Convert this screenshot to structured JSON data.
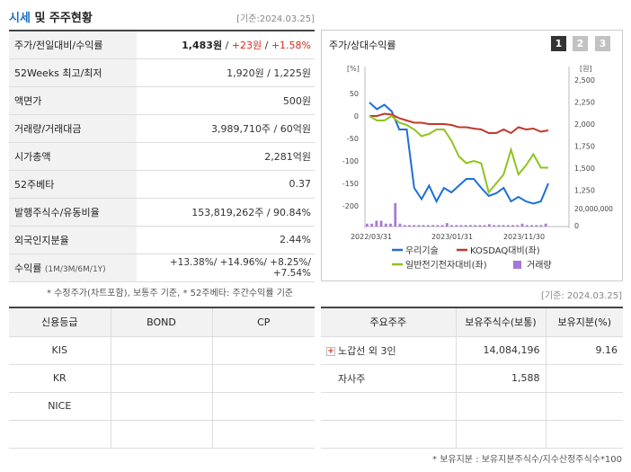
{
  "header": {
    "title_accent": "시세",
    "title_rest": " 및 주주현황",
    "date": "[기준:2024.03.25]"
  },
  "info_rows": [
    {
      "label": "주가/전일대비/수익률",
      "price": "1,483원",
      "sep": " / ",
      "change": "+23원",
      "sep2": " / ",
      "rate": "+1.58%"
    },
    {
      "label": "52Weeks 최고/최저",
      "value": "1,920원 / 1,225원"
    },
    {
      "label": "액면가",
      "value": "500원"
    },
    {
      "label": "거래량/거래대금",
      "value": "3,989,710주 / 60억원"
    },
    {
      "label": "시가총액",
      "value": "2,281억원"
    },
    {
      "label": "52주베타",
      "value": "0.37"
    },
    {
      "label": "발행주식수/유동비율",
      "value": "153,819,262주 / 90.84%"
    },
    {
      "label": "외국인지분율",
      "value": "2.44%"
    },
    {
      "label": "수익률",
      "label_small": "(1M/3M/6M/1Y)",
      "value": "+13.38%/ +14.96%/ +8.25%/ +7.54%"
    }
  ],
  "note": "* 수정주가(차트포함), 보통주 기준, * 52주베타: 주간수익률 기준",
  "chart": {
    "title": "주가/상대수익률",
    "pages": [
      "1",
      "2",
      "3"
    ],
    "left_unit": "[%]",
    "right_unit": "[원]",
    "legend": [
      {
        "label": "우리기술",
        "color": "#1d6fd8"
      },
      {
        "label": "KOSDAQ대비(좌)",
        "color": "#c0392b"
      },
      {
        "label": "일반전기전자대비(좌)",
        "color": "#8fc31f"
      },
      {
        "label": "거래량",
        "color": "#a678d6"
      }
    ]
  },
  "chart_data": {
    "type": "line",
    "x_labels": [
      "2022/03/31",
      "2023/01/31",
      "2023/11/30"
    ],
    "left_axis": {
      "ticks": [
        "50",
        "0",
        "-50",
        "-100",
        "-150",
        "-200"
      ],
      "range": [
        -210,
        60
      ]
    },
    "right_axis": {
      "ticks": [
        "2,500",
        "2,250",
        "2,000",
        "1,750",
        "1,500",
        "1,250"
      ],
      "volume_ticks": [
        "20,000,000",
        "0"
      ]
    },
    "series": [
      {
        "name": "우리기술",
        "color": "#1d6fd8",
        "values": [
          30,
          15,
          25,
          10,
          -30,
          -30,
          -160,
          -185,
          -155,
          -190,
          -160,
          -170,
          -155,
          -140,
          -140,
          -160,
          -178,
          -172,
          -160,
          -190,
          -180,
          -190,
          -195,
          -190,
          -150
        ]
      },
      {
        "name": "KOSDAQ대비(좌)",
        "color": "#c0392b",
        "values": [
          0,
          0,
          5,
          3,
          -5,
          -10,
          -15,
          -15,
          -18,
          -18,
          -18,
          -20,
          -25,
          -25,
          -28,
          -30,
          -38,
          -38,
          -30,
          -38,
          -25,
          -30,
          -28,
          -35,
          -32
        ]
      },
      {
        "name": "일반전기전자대비(좌)",
        "color": "#8fc31f",
        "values": [
          0,
          -10,
          -10,
          0,
          -15,
          -20,
          -30,
          -45,
          -40,
          -30,
          -30,
          -55,
          -90,
          -105,
          -100,
          -105,
          -170,
          -150,
          -130,
          -75,
          -130,
          -110,
          -85,
          -115,
          -115
        ]
      }
    ],
    "volume": [
      1,
      1,
      2,
      2,
      1,
      1,
      8,
      1,
      0.5,
      0.5,
      0.5,
      0.5,
      0.5,
      0.5,
      0.5,
      0.5,
      0.5,
      1.2,
      0.5,
      0.5,
      0.5,
      0.5,
      0.5,
      0.5,
      0.5,
      0.5,
      0.8,
      0.5,
      0.5,
      0.5,
      0.5,
      0.5,
      0.5,
      1,
      0.5,
      0.5,
      0.5,
      0.5,
      1
    ]
  },
  "date2": "[기준: 2024.03.25]",
  "credit": {
    "headers": [
      "신용등급",
      "BOND",
      "CP"
    ],
    "rows": [
      [
        "KIS",
        "",
        ""
      ],
      [
        "KR",
        "",
        ""
      ],
      [
        "NICE",
        "",
        ""
      ],
      [
        "",
        "",
        ""
      ]
    ]
  },
  "holders": {
    "headers": [
      "주요주주",
      "보유주식수(보통)",
      "보유지분(%)"
    ],
    "rows": [
      {
        "name": "노갑선 외 3인",
        "plus": true,
        "shares": "14,084,196",
        "pct": "9.16"
      },
      {
        "name": "자사주",
        "plus": false,
        "shares": "1,588",
        "pct": ""
      },
      {
        "name": "",
        "plus": false,
        "shares": "",
        "pct": ""
      },
      {
        "name": "",
        "plus": false,
        "shares": "",
        "pct": ""
      }
    ]
  },
  "note2": "* 보유지분 : 보유지분주식수/지수산정주식수*100"
}
